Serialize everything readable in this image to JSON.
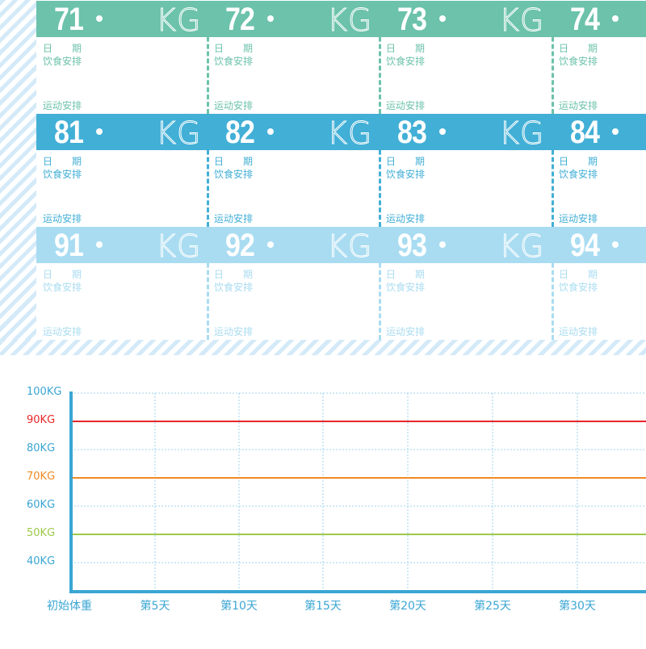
{
  "labels": {
    "date": "日　　期",
    "diet": "饮食安排",
    "exercise": "运动安排",
    "unit": "KG"
  },
  "rows": [
    {
      "color": "#6cc2ab",
      "cells": [
        "71",
        "72",
        "73",
        "74"
      ]
    },
    {
      "color": "#42afd6",
      "cells": [
        "81",
        "82",
        "83",
        "84"
      ]
    },
    {
      "color": "#a9dcf1",
      "cells": [
        "91",
        "92",
        "93",
        "94"
      ]
    }
  ],
  "chart_data": {
    "type": "line",
    "yticks": [
      {
        "label": "100KG",
        "value": 100,
        "color": "#3aa6d3"
      },
      {
        "label": "90KG",
        "value": 90,
        "color": "#e8262a"
      },
      {
        "label": "80KG",
        "value": 80,
        "color": "#3aa6d3"
      },
      {
        "label": "70KG",
        "value": 70,
        "color": "#ef8a22"
      },
      {
        "label": "60KG",
        "value": 60,
        "color": "#3aa6d3"
      },
      {
        "label": "50KG",
        "value": 50,
        "color": "#9cc94a"
      },
      {
        "label": "40KG",
        "value": 40,
        "color": "#3aa6d3"
      }
    ],
    "reference_lines": [
      {
        "value": 90,
        "color": "#e8262a"
      },
      {
        "value": 70,
        "color": "#ef8a22"
      },
      {
        "value": 50,
        "color": "#9cc94a"
      }
    ],
    "xticks": [
      "初始体重",
      "第5天",
      "第10天",
      "第15天",
      "第20天",
      "第25天",
      "第30天",
      "第"
    ],
    "grid": true,
    "series": []
  }
}
